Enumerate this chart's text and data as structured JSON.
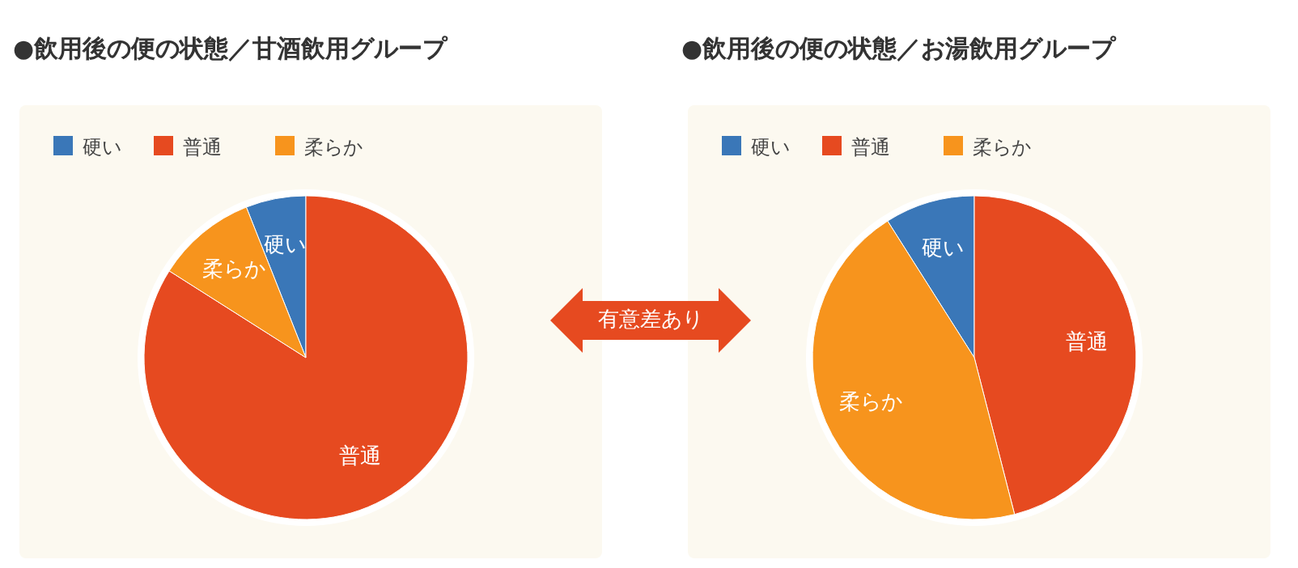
{
  "chart_data": [
    {
      "type": "pie",
      "title": "●飲用後の便の状態／甘酒飲用グループ",
      "categories": [
        "硬い",
        "普通",
        "柔らか"
      ],
      "values": [
        6,
        84,
        10
      ],
      "colors": [
        "#3a77b8",
        "#e64a20",
        "#f7941d"
      ],
      "legend": "top left",
      "annotations": [
        "有意差あり"
      ]
    },
    {
      "type": "pie",
      "title": "●飲用後の便の状態／お湯飲用グループ",
      "categories": [
        "硬い",
        "普通",
        "柔らか"
      ],
      "values": [
        9,
        46,
        45
      ],
      "colors": [
        "#3a77b8",
        "#e64a20",
        "#f7941d"
      ],
      "legend": "top left"
    }
  ]
}
